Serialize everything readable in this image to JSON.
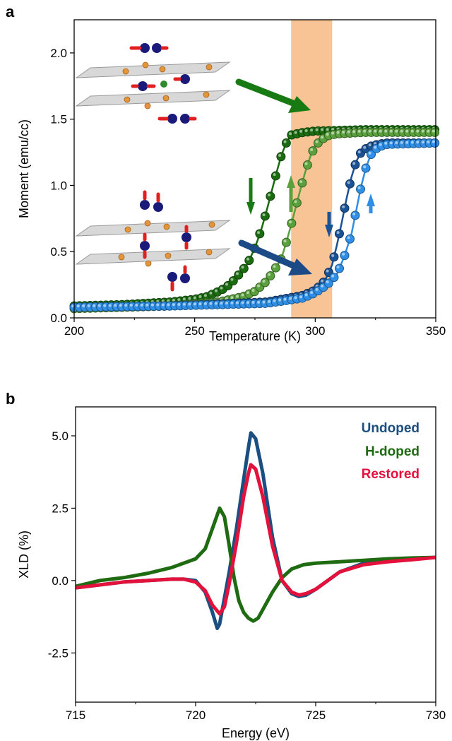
{
  "panels": [
    {
      "letter": "a",
      "chart_data": {
        "type": "scatter",
        "xlabel": "Temperature (K)",
        "ylabel": "Moment (emu/cc)",
        "xlim": [
          200,
          350
        ],
        "ylim": [
          0,
          2.25
        ],
        "xticks": [
          200,
          250,
          300,
          350
        ],
        "yticks": [
          0.0,
          0.5,
          1.0,
          1.5,
          2.0
        ],
        "ytick_labels": [
          "0.0",
          "0.5",
          "1.0",
          "1.5",
          "2.0"
        ],
        "highlight_band_x": [
          290,
          307
        ],
        "series": [
          {
            "color": "#1b6b10",
            "style": "markers+line",
            "x": [
              200,
              220,
              240,
              250,
              255,
              260,
              263,
              266,
              269,
              272,
              274,
              276,
              278,
              280,
              282,
              284,
              286,
              288,
              290,
              295,
              300,
              320,
              350
            ],
            "y": [
              0.09,
              0.1,
              0.12,
              0.14,
              0.16,
              0.2,
              0.23,
              0.28,
              0.34,
              0.41,
              0.49,
              0.58,
              0.69,
              0.82,
              0.96,
              1.1,
              1.23,
              1.32,
              1.38,
              1.4,
              1.41,
              1.42,
              1.42
            ]
          },
          {
            "color": "#5aa03c",
            "style": "markers+line",
            "x": [
              200,
              220,
              240,
              260,
              270,
              275,
              280,
              283,
              286,
              288,
              290,
              292,
              294,
              296,
              298,
              300,
              303,
              306,
              310,
              320,
              350
            ],
            "y": [
              0.07,
              0.08,
              0.09,
              0.12,
              0.16,
              0.2,
              0.28,
              0.36,
              0.45,
              0.57,
              0.7,
              0.84,
              0.98,
              1.11,
              1.22,
              1.3,
              1.35,
              1.38,
              1.39,
              1.4,
              1.4
            ]
          },
          {
            "color": "#1a5296",
            "style": "markers+line",
            "x": [
              200,
              240,
              280,
              295,
              300,
              304,
              307,
              309,
              311,
              313,
              315,
              317,
              319,
              322,
              326,
              330,
              350
            ],
            "y": [
              0.08,
              0.09,
              0.12,
              0.17,
              0.21,
              0.28,
              0.4,
              0.55,
              0.72,
              0.9,
              1.06,
              1.18,
              1.25,
              1.29,
              1.31,
              1.32,
              1.32
            ]
          },
          {
            "color": "#2f8fe6",
            "style": "markers+line",
            "x": [
              200,
              240,
              280,
              295,
              300,
              305,
              309,
              312,
              315,
              317,
              319,
              321,
              323,
              326,
              330,
              350
            ],
            "y": [
              0.08,
              0.09,
              0.11,
              0.15,
              0.19,
              0.25,
              0.33,
              0.46,
              0.63,
              0.81,
              0.99,
              1.13,
              1.23,
              1.29,
              1.31,
              1.32
            ]
          }
        ]
      }
    },
    {
      "letter": "b",
      "chart_data": {
        "type": "line",
        "xlabel": "Energy (eV)",
        "ylabel": "XLD (%)",
        "xlim": [
          715,
          730
        ],
        "ylim": [
          -4.2,
          6.0
        ],
        "xticks": [
          715,
          720,
          725,
          730
        ],
        "yticks": [
          -2.5,
          0.0,
          2.5,
          5.0
        ],
        "ytick_labels": [
          "-2.5",
          "0.0",
          "2.5",
          "5.0"
        ],
        "series": [
          {
            "name": "Undoped",
            "color": "#1b4f82",
            "x": [
              715,
              716,
              717,
              718,
              719,
              719.5,
              720,
              720.4,
              720.7,
              720.9,
              721.0,
              721.2,
              721.4,
              721.7,
              722.0,
              722.2,
              722.3,
              722.5,
              722.8,
              723.2,
              723.6,
              724.0,
              724.3,
              724.6,
              725.0,
              726,
              727,
              728,
              729,
              730
            ],
            "y": [
              -0.25,
              -0.15,
              -0.05,
              0.0,
              0.05,
              0.05,
              0.0,
              -0.4,
              -1.1,
              -1.65,
              -1.5,
              -0.6,
              0.3,
              1.8,
              3.5,
              4.6,
              5.1,
              4.9,
              3.7,
              1.5,
              0.0,
              -0.45,
              -0.55,
              -0.5,
              -0.3,
              0.3,
              0.6,
              0.7,
              0.75,
              0.8
            ]
          },
          {
            "name": "H-doped",
            "color": "#1e6b12",
            "x": [
              715,
              716,
              717,
              718,
              719,
              720,
              720.4,
              720.7,
              721.0,
              721.2,
              721.4,
              721.6,
              721.8,
              722.0,
              722.2,
              722.4,
              722.6,
              722.8,
              723.2,
              723.6,
              724.0,
              724.5,
              725,
              726,
              727,
              728,
              729,
              730
            ],
            "y": [
              -0.2,
              0.0,
              0.1,
              0.25,
              0.45,
              0.75,
              1.1,
              1.8,
              2.5,
              2.2,
              1.2,
              0.1,
              -0.7,
              -1.1,
              -1.3,
              -1.4,
              -1.3,
              -1.0,
              -0.4,
              0.1,
              0.4,
              0.55,
              0.6,
              0.65,
              0.7,
              0.75,
              0.78,
              0.8
            ]
          },
          {
            "name": "Restored",
            "color": "#e3123c",
            "x": [
              715,
              716,
              717,
              718,
              719,
              719.5,
              720,
              720.4,
              720.7,
              721.0,
              721.2,
              721.4,
              721.7,
              722.0,
              722.2,
              722.3,
              722.5,
              722.8,
              723.2,
              723.6,
              724.0,
              724.3,
              724.6,
              725.0,
              726,
              727,
              728,
              729,
              730
            ],
            "y": [
              -0.25,
              -0.15,
              -0.05,
              0.0,
              0.05,
              0.05,
              -0.05,
              -0.35,
              -0.85,
              -1.15,
              -0.9,
              -0.1,
              1.3,
              2.9,
              3.7,
              4.0,
              3.85,
              2.9,
              1.2,
              0.0,
              -0.4,
              -0.5,
              -0.45,
              -0.3,
              0.3,
              0.55,
              0.65,
              0.72,
              0.8
            ]
          }
        ]
      }
    }
  ],
  "colors": {
    "band": "#f7bc8a",
    "arrow_green": "#177a12",
    "arrow_blue": "#1b4a86"
  }
}
